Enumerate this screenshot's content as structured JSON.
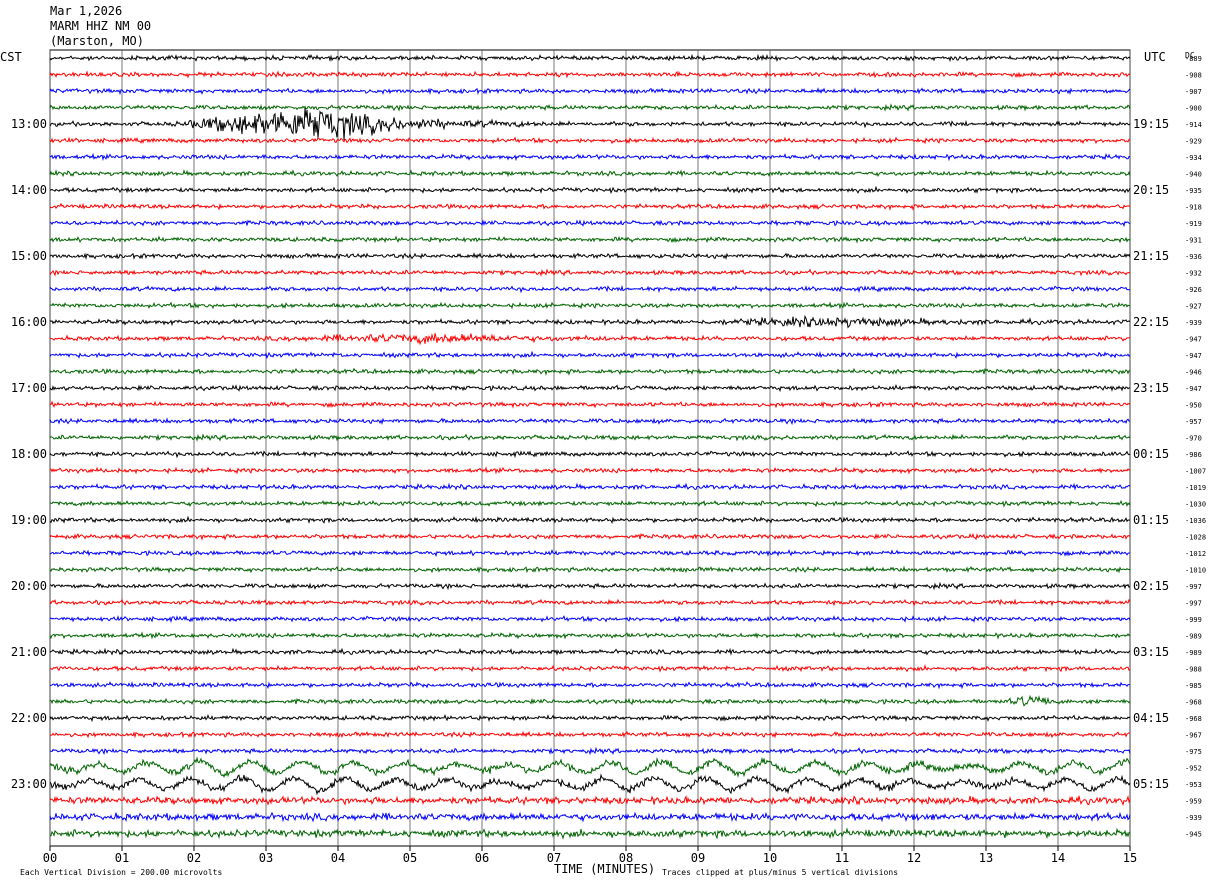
{
  "header": {
    "date": "Mar 1,2026",
    "station": "MARM HHZ NM 00",
    "location": "(Marston, MO)"
  },
  "labels": {
    "left_tz": "CST",
    "right_tz": "UTC",
    "dc_label": "DC",
    "x_title": "TIME (MINUTES)",
    "scale_note": "Each Vertical Division =  200.00 microvolts",
    "clip_note": "Traces clipped at plus/minus 5 vertical divisions"
  },
  "colors": {
    "trace_cycle": [
      "#000000",
      "#ff0000",
      "#0000ff",
      "#006400"
    ],
    "grid": "#000000",
    "background": "#ffffff"
  },
  "chart_data": {
    "type": "line",
    "title": "MARM HHZ NM 00",
    "xlabel": "TIME (MINUTES)",
    "xlim": [
      0,
      15
    ],
    "x_tick_labels": [
      "00",
      "01",
      "02",
      "03",
      "04",
      "05",
      "06",
      "07",
      "08",
      "09",
      "10",
      "11",
      "12",
      "13",
      "14",
      "15"
    ],
    "rows_per_hour": 4,
    "row_minutes": 15,
    "left_hour_labels": [
      "13:00",
      "14:00",
      "15:00",
      "16:00",
      "17:00",
      "18:00",
      "19:00",
      "20:00",
      "21:00",
      "22:00",
      "23:00"
    ],
    "right_hour_labels": [
      "19:15",
      "20:15",
      "21:15",
      "22:15",
      "23:15",
      "00:15",
      "01:15",
      "02:15",
      "03:15",
      "04:15",
      "05:15"
    ],
    "dc_offsets": [
      -889,
      -908,
      -907,
      -900,
      -914,
      -929,
      -934,
      -940,
      -935,
      -918,
      -919,
      -931,
      -936,
      -932,
      -926,
      -927,
      -939,
      -947,
      -947,
      -946,
      -947,
      -950,
      -957,
      -970,
      -986,
      -1007,
      -1019,
      -1030,
      -1036,
      -1028,
      -1012,
      -1010,
      -997,
      -997,
      -999,
      -989,
      -989,
      -988,
      -985,
      -968,
      -968,
      -967,
      -975,
      -952,
      -953,
      -959,
      -939,
      -945
    ],
    "microvolts_per_division": 200.0,
    "clip_divisions": 5,
    "events": [
      {
        "row": 4,
        "start_min": 1.7,
        "end_min": 7.0,
        "peak_min": 3.7,
        "amplitude": "large"
      },
      {
        "row": 16,
        "start_min": 9.0,
        "end_min": 15.0,
        "peak_min": 11.0,
        "amplitude": "small"
      },
      {
        "row": 17,
        "start_min": 3.0,
        "end_min": 8.5,
        "peak_min": 5.5,
        "amplitude": "small"
      },
      {
        "row": 39,
        "start_min": 13.3,
        "end_min": 13.9,
        "peak_min": 13.5,
        "amplitude": "small"
      }
    ],
    "long_period_rows": [
      43,
      44
    ]
  }
}
